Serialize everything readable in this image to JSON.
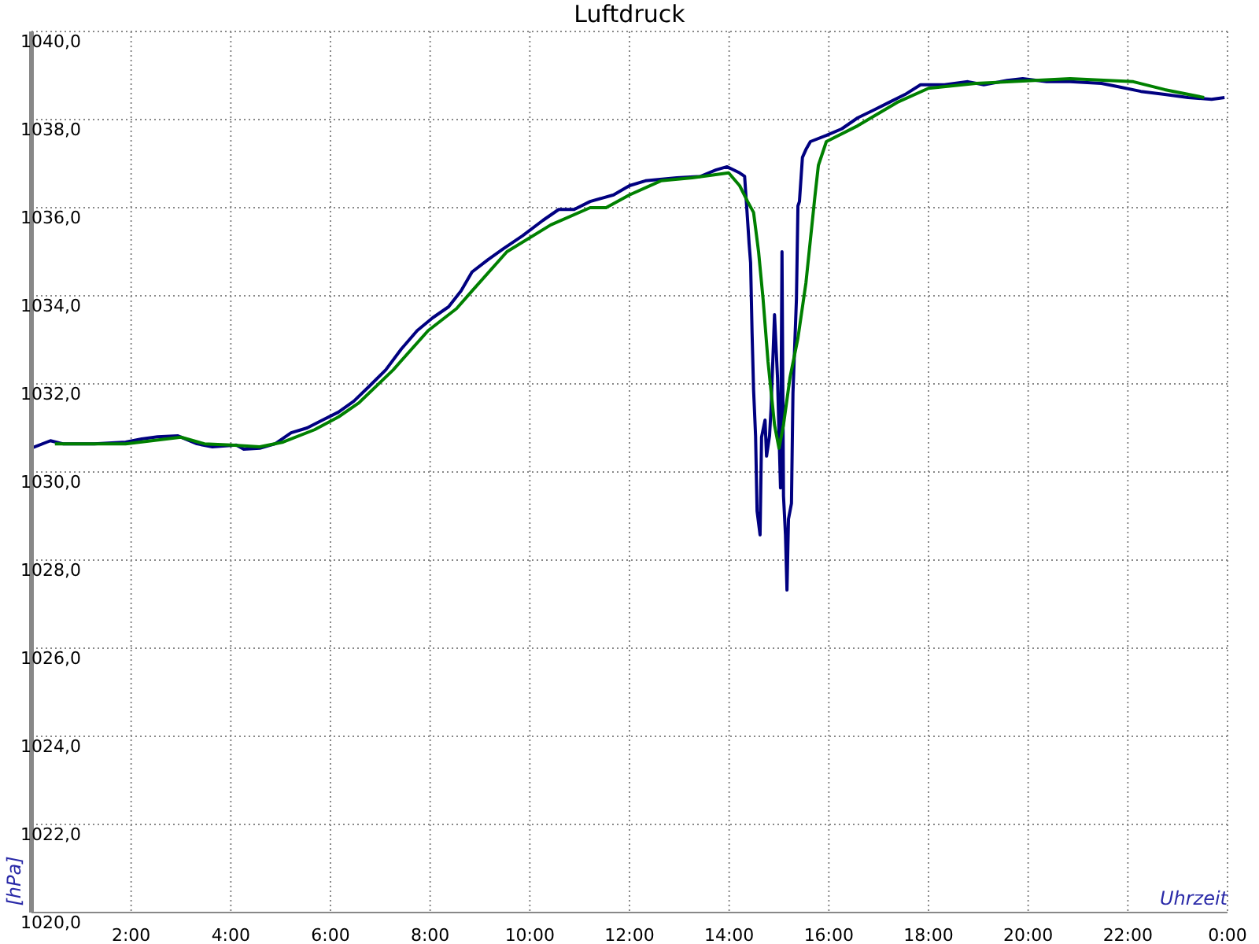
{
  "chart_data": {
    "type": "line",
    "title": "Luftdruck",
    "xlabel": "Uhrzeit",
    "ylabel": "[hPa]",
    "xlim": [
      0,
      24
    ],
    "xticks": [
      {
        "value": 2,
        "label": "2:00"
      },
      {
        "value": 4,
        "label": "4:00"
      },
      {
        "value": 6,
        "label": "6:00"
      },
      {
        "value": 8,
        "label": "8:00"
      },
      {
        "value": 10,
        "label": "10:00"
      },
      {
        "value": 12,
        "label": "12:00"
      },
      {
        "value": 14,
        "label": "14:00"
      },
      {
        "value": 16,
        "label": "16:00"
      },
      {
        "value": 18,
        "label": "18:00"
      },
      {
        "value": 20,
        "label": "20:00"
      },
      {
        "value": 22,
        "label": "22:00"
      },
      {
        "value": 24,
        "label": "0:00"
      }
    ],
    "ylim": [
      1020,
      1040
    ],
    "yticks": [
      {
        "value": 1020,
        "label": "1020,0"
      },
      {
        "value": 1022,
        "label": "1022,0"
      },
      {
        "value": 1024,
        "label": "1024,0"
      },
      {
        "value": 1026,
        "label": "1026,0"
      },
      {
        "value": 1028,
        "label": "1028,0"
      },
      {
        "value": 1030,
        "label": "1030,0"
      },
      {
        "value": 1032,
        "label": "1032,0"
      },
      {
        "value": 1034,
        "label": "1034,0"
      },
      {
        "value": 1036,
        "label": "1036,0"
      },
      {
        "value": 1038,
        "label": "1038,0"
      },
      {
        "value": 1040,
        "label": "1040,0"
      }
    ],
    "grid": true,
    "marker": "none",
    "line_style": "solid",
    "series": [
      {
        "color": "#000080",
        "x": [
          0,
          0.38,
          0.63,
          1.26,
          1.89,
          2.21,
          2.53,
          2.94,
          3.32,
          3.63,
          4.11,
          4.26,
          4.58,
          4.89,
          5.21,
          5.53,
          5.84,
          6.16,
          6.47,
          6.79,
          7.11,
          7.42,
          7.74,
          8.05,
          8.37,
          8.62,
          8.84,
          9.16,
          9.47,
          9.85,
          10.26,
          10.58,
          10.89,
          11.21,
          11.68,
          12.0,
          12.32,
          12.95,
          13.42,
          13.74,
          13.96,
          14.21,
          14.31,
          14.37,
          14.4,
          14.43,
          14.46,
          14.49,
          14.53,
          14.56,
          14.62,
          14.65,
          14.72,
          14.75,
          14.81,
          14.84,
          14.91,
          14.97,
          15.03,
          15.06,
          15.09,
          15.13,
          15.16,
          15.19,
          15.25,
          15.28,
          15.35,
          15.38,
          15.41,
          15.47,
          15.54,
          15.63,
          15.95,
          16.26,
          16.58,
          16.89,
          17.21,
          17.53,
          17.84,
          18.32,
          18.79,
          19.11,
          19.58,
          19.89,
          20.37,
          20.84,
          21.47,
          21.79,
          22.26,
          22.74,
          23.21,
          23.68,
          23.94
        ],
        "values": [
          1030.54,
          1030.71,
          1030.64,
          1030.64,
          1030.68,
          1030.75,
          1030.8,
          1030.82,
          1030.64,
          1030.57,
          1030.61,
          1030.52,
          1030.54,
          1030.64,
          1030.89,
          1031.0,
          1031.18,
          1031.36,
          1031.61,
          1031.96,
          1032.32,
          1032.79,
          1033.21,
          1033.5,
          1033.75,
          1034.11,
          1034.54,
          1034.82,
          1035.07,
          1035.36,
          1035.71,
          1035.96,
          1035.96,
          1036.14,
          1036.29,
          1036.5,
          1036.61,
          1036.68,
          1036.71,
          1036.86,
          1036.93,
          1036.79,
          1036.71,
          1035.71,
          1035.18,
          1034.75,
          1033.14,
          1031.86,
          1030.82,
          1029.11,
          1028.57,
          1030.79,
          1031.18,
          1030.36,
          1030.82,
          1031.43,
          1033.57,
          1032.14,
          1029.64,
          1035.0,
          1029.46,
          1028.57,
          1027.32,
          1028.93,
          1029.29,
          1031.79,
          1033.93,
          1036.04,
          1036.14,
          1037.14,
          1037.32,
          1037.5,
          1037.64,
          1037.79,
          1038.04,
          1038.21,
          1038.39,
          1038.57,
          1038.79,
          1038.79,
          1038.86,
          1038.79,
          1038.89,
          1038.93,
          1038.86,
          1038.86,
          1038.82,
          1038.75,
          1038.64,
          1038.57,
          1038.5,
          1038.46,
          1038.5
        ]
      },
      {
        "color": "#008000",
        "x": [
          0.47,
          1.89,
          3.0,
          3.47,
          4.01,
          4.58,
          5.05,
          5.68,
          6.16,
          6.57,
          7.26,
          7.96,
          8.53,
          8.84,
          9.54,
          10.42,
          11.21,
          11.53,
          12.0,
          12.63,
          13.26,
          13.99,
          14.21,
          14.37,
          14.49,
          14.59,
          14.68,
          14.78,
          14.91,
          15.0,
          15.09,
          15.22,
          15.38,
          15.54,
          15.72,
          15.79,
          15.95,
          16.58,
          17.37,
          18.0,
          18.95,
          20.84,
          22.11,
          22.74,
          23.53
        ],
        "values": [
          1030.64,
          1030.64,
          1030.79,
          1030.64,
          1030.61,
          1030.57,
          1030.68,
          1030.96,
          1031.25,
          1031.57,
          1032.32,
          1033.21,
          1033.71,
          1034.11,
          1035.0,
          1035.61,
          1036.0,
          1036.0,
          1036.29,
          1036.61,
          1036.68,
          1036.79,
          1036.5,
          1036.14,
          1035.89,
          1035.0,
          1033.93,
          1032.5,
          1031.07,
          1030.54,
          1031.07,
          1032.14,
          1033.04,
          1034.29,
          1036.25,
          1036.96,
          1037.5,
          1037.86,
          1038.39,
          1038.71,
          1038.82,
          1038.93,
          1038.86,
          1038.68,
          1038.5
        ]
      }
    ]
  }
}
